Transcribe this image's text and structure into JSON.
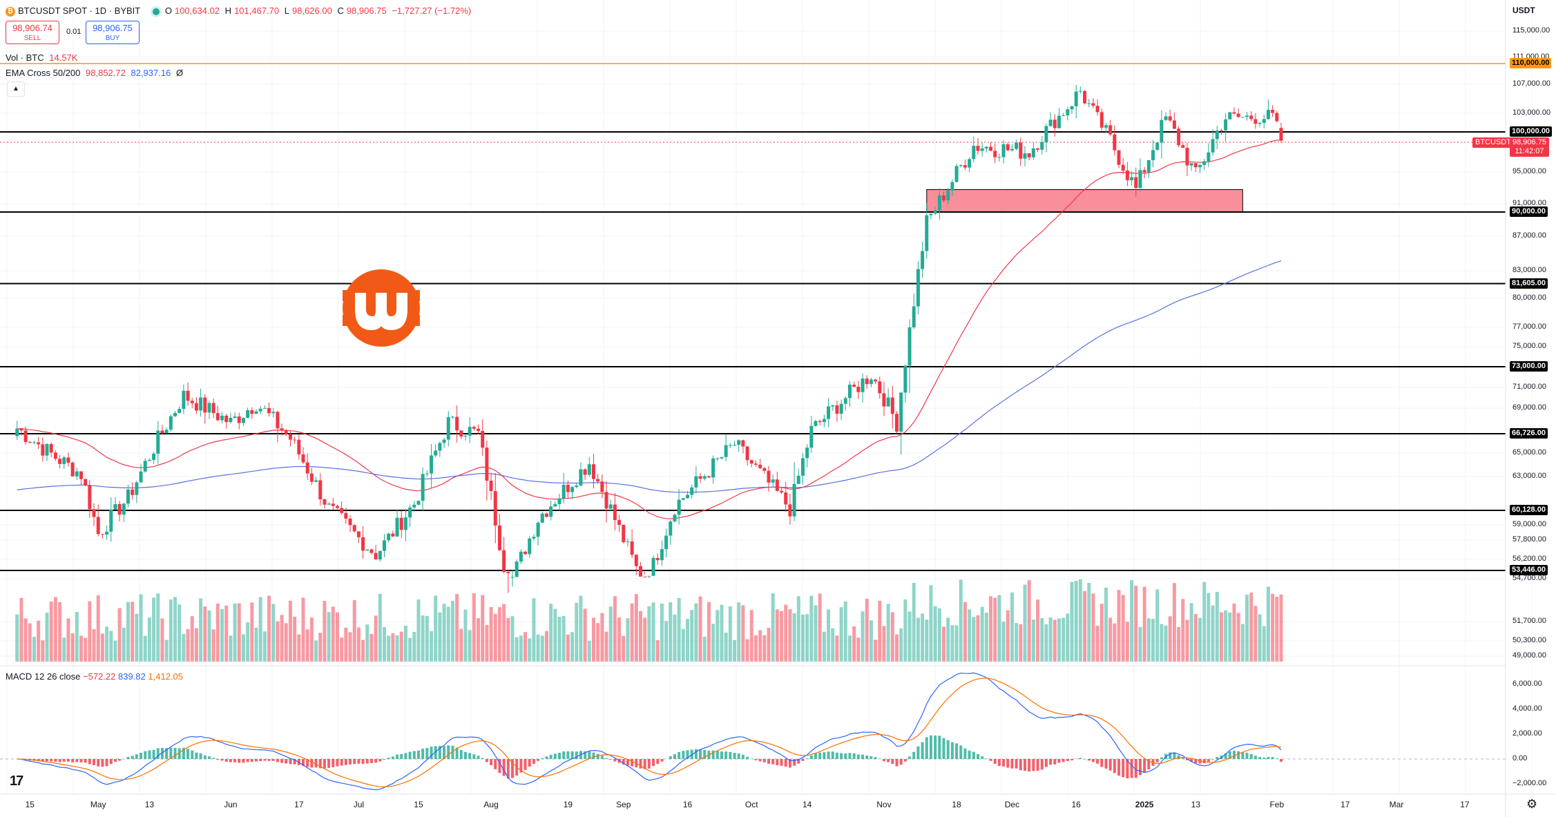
{
  "header": {
    "symbol": "BTCUSDT SPOT · 1D · BYBIT",
    "symbol_icon": "bitcoin-icon",
    "ohlc": {
      "o_label": "O",
      "o": "100,634.02",
      "h_label": "H",
      "h": "101,467.70",
      "l_label": "L",
      "l": "98,626.00",
      "c_label": "C",
      "c": "98,906.75",
      "change": "−1,727.27 (−1.72%)"
    },
    "sell": {
      "price": "98,906.74",
      "label": "SELL"
    },
    "buy": {
      "price": "98,906.75",
      "label": "BUY"
    },
    "spread": "0.01",
    "volume": {
      "label": "Vol · BTC",
      "value": "14.57K"
    },
    "ema": {
      "label": "EMA Cross 50/200",
      "v1": "98,852.72",
      "v2": "82,937.16",
      "suffix": "Ø"
    },
    "macd": {
      "label": "MACD 12 26 close",
      "v1": "−572.22",
      "v2": "839.82",
      "v3": "1,412.05"
    },
    "collapse_icon": "chevron-up-icon"
  },
  "price_axis": {
    "currency": "USDT",
    "labels": [
      "115,000.00",
      "111,000.00",
      "107,000.00",
      "103,000.00",
      "95,000.00",
      "91,000.00",
      "87,000.00",
      "83,000.00",
      "80,000.00",
      "77,000.00",
      "75,000.00",
      "71,000.00",
      "69,000.00",
      "65,000.00",
      "63,000.00",
      "59,000.00",
      "57,800.00",
      "56,200.00",
      "54,700.00",
      "51,700.00",
      "50,300.00",
      "49,000.00"
    ],
    "level_tags": [
      "110,000.00",
      "100,000.00",
      "90,000.00",
      "81,605.00",
      "73,000.00",
      "66,726.00",
      "60,128.00",
      "53,446.00"
    ],
    "current_symbol": "BTCUSDT",
    "current_price": "98,906.75",
    "countdown": "11:42:07"
  },
  "macd_axis": {
    "labels": [
      "6,000.00",
      "4,000.00",
      "2,000.00",
      "0.00",
      "−2,000.00"
    ]
  },
  "time_axis": {
    "labels": [
      "15",
      "May",
      "13",
      "Jun",
      "17",
      "Jul",
      "15",
      "Aug",
      "19",
      "Sep",
      "16",
      "Oct",
      "14",
      "Nov",
      "18",
      "Dec",
      "16",
      "2025",
      "13",
      "Feb",
      "17",
      "Mar",
      "17"
    ]
  },
  "colors": {
    "up": "#22ab94",
    "down": "#f23645",
    "ema_fast": "#f23645",
    "ema_slow": "#5b6ee1",
    "resistance": "#ff9800",
    "zone": "#f7838f",
    "logo": "#f15a16"
  },
  "chart_data": {
    "type": "candlestick",
    "horizontal_levels": [
      110000,
      100000,
      90000,
      81605,
      73000,
      66726,
      60128,
      53446
    ],
    "zone": {
      "from": 90000,
      "to": 92800,
      "start": "Nov 11",
      "end": "Jan 24"
    },
    "close_series_approx": [
      {
        "date": "Apr 12",
        "close": 67200
      },
      {
        "date": "Apr 20",
        "close": 64900
      },
      {
        "date": "Apr 27",
        "close": 63200
      },
      {
        "date": "May 1",
        "close": 58300
      },
      {
        "date": "May 8",
        "close": 61200
      },
      {
        "date": "May 15",
        "close": 66200
      },
      {
        "date": "May 21",
        "close": 70200
      },
      {
        "date": "Jun 1",
        "close": 67700
      },
      {
        "date": "Jun 7",
        "close": 69500
      },
      {
        "date": "Jun 15",
        "close": 66300
      },
      {
        "date": "Jun 24",
        "close": 60300
      },
      {
        "date": "Jul 5",
        "close": 56600
      },
      {
        "date": "Jul 14",
        "close": 60700
      },
      {
        "date": "Jul 22",
        "close": 67700
      },
      {
        "date": "Jul 29",
        "close": 66700
      },
      {
        "date": "Aug 5",
        "close": 54000
      },
      {
        "date": "Aug 12",
        "close": 59500
      },
      {
        "date": "Aug 24",
        "close": 64200
      },
      {
        "date": "Sep 6",
        "close": 53900
      },
      {
        "date": "Sep 13",
        "close": 60500
      },
      {
        "date": "Sep 27",
        "close": 65800
      },
      {
        "date": "Oct 10",
        "close": 60300
      },
      {
        "date": "Oct 15",
        "close": 67000
      },
      {
        "date": "Oct 29",
        "close": 72300
      },
      {
        "date": "Nov 4",
        "close": 67700
      },
      {
        "date": "Nov 11",
        "close": 88700
      },
      {
        "date": "Nov 22",
        "close": 98300
      },
      {
        "date": "Dec 5",
        "close": 97500
      },
      {
        "date": "Dec 17",
        "close": 106100
      },
      {
        "date": "Dec 30",
        "close": 92800
      },
      {
        "date": "Jan 6",
        "close": 102200
      },
      {
        "date": "Jan 13",
        "close": 94500
      },
      {
        "date": "Jan 20",
        "close": 102300
      },
      {
        "date": "Jan 31",
        "close": 102400
      },
      {
        "date": "Feb 2",
        "close": 98906.75
      }
    ]
  }
}
